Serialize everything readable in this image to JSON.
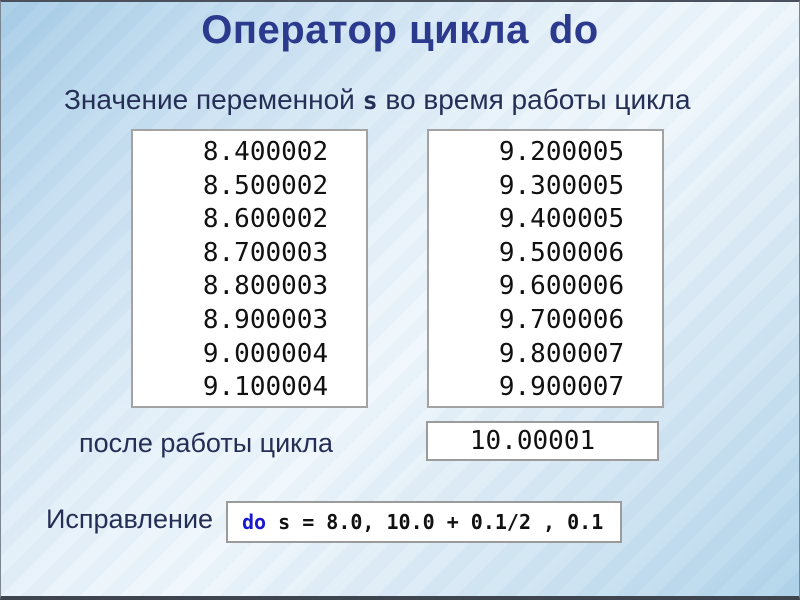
{
  "slide": {
    "title": {
      "main": "Оператор цикла",
      "keyword": "do"
    },
    "subtitle": {
      "part1": "Значение переменной ",
      "var": "s",
      "part2": " во время работы цикла"
    },
    "loop_values": {
      "col1": [
        "8.400002",
        "8.500002",
        "8.600002",
        "8.700003",
        "8.800003",
        "8.900003",
        "9.000004",
        "9.100004"
      ],
      "col2": [
        "9.200005",
        "9.300005",
        "9.400005",
        "9.500006",
        "9.600006",
        "9.700006",
        "9.800007",
        "9.900007"
      ]
    },
    "after_loop": {
      "label": "после работы цикла",
      "value": "10.00001"
    },
    "correction": {
      "label": "Исправление",
      "code_keyword": "do",
      "code_rest": " s = 8.0, 10.0 + 0.1/2 , 0.1"
    }
  },
  "colors": {
    "title": "#2c3a8e",
    "label": "#252f55",
    "code_keyword": "#1a1acd",
    "value_box_border": "#a3a3a3",
    "background_blue": "#a7cde7"
  }
}
